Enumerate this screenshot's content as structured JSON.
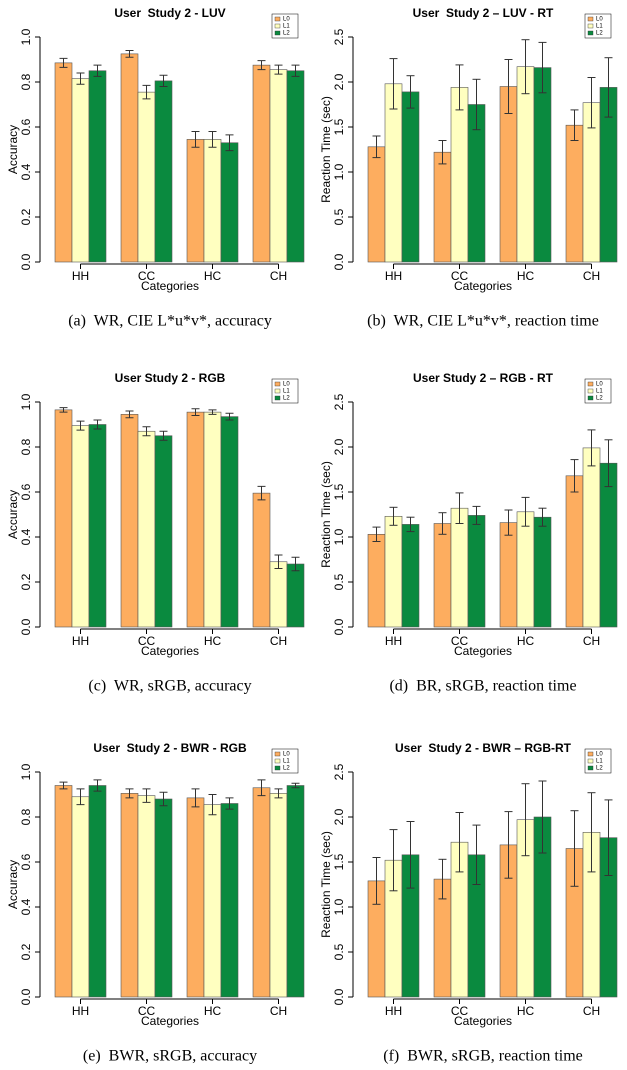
{
  "chart_data": [
    {
      "type": "bar",
      "title": "User  Study 2 - LUV",
      "xlabel": "Categories",
      "ylabel": "Accuracy",
      "caption": "(a)  WR, CIE L*u*v*, accuracy",
      "categories": [
        "HH",
        "CC",
        "HC",
        "CH"
      ],
      "legend": "top-right",
      "series": [
        {
          "name": "L0",
          "color": "#fdad5f",
          "values": [
            0.885,
            0.925,
            0.545,
            0.875
          ],
          "errors": [
            0.02,
            0.015,
            0.035,
            0.02
          ]
        },
        {
          "name": "L1",
          "color": "#ffffc0",
          "values": [
            0.815,
            0.755,
            0.545,
            0.855
          ],
          "errors": [
            0.025,
            0.03,
            0.035,
            0.02
          ]
        },
        {
          "name": "L2",
          "color": "#0a8a3f",
          "values": [
            0.85,
            0.805,
            0.53,
            0.85
          ],
          "errors": [
            0.025,
            0.025,
            0.035,
            0.025
          ]
        }
      ],
      "ylim": [
        0,
        1
      ],
      "yticks": [
        {
          "value": 0,
          "label": "0.0"
        },
        {
          "value": 0.2,
          "label": "0.2"
        },
        {
          "value": 0.4,
          "label": "0.4"
        },
        {
          "value": 0.6,
          "label": "0.6"
        },
        {
          "value": 0.8,
          "label": "0.8"
        },
        {
          "value": 1,
          "label": "1.0"
        }
      ]
    },
    {
      "type": "bar",
      "title": "User  Study 2 – LUV - RT",
      "xlabel": "Categories",
      "ylabel": "Reaction Time (sec)",
      "caption": "(b)  WR, CIE L*u*v*, reaction time",
      "categories": [
        "HH",
        "CC",
        "HC",
        "CH"
      ],
      "legend": "top-right",
      "series": [
        {
          "name": "L0",
          "color": "#fdad5f",
          "values": [
            1.28,
            1.22,
            1.95,
            1.52
          ],
          "errors": [
            0.12,
            0.13,
            0.3,
            0.17
          ]
        },
        {
          "name": "L1",
          "color": "#ffffc0",
          "values": [
            1.98,
            1.94,
            2.17,
            1.77
          ],
          "errors": [
            0.28,
            0.25,
            0.3,
            0.28
          ]
        },
        {
          "name": "L2",
          "color": "#0a8a3f",
          "values": [
            1.89,
            1.75,
            2.16,
            1.94
          ],
          "errors": [
            0.18,
            0.28,
            0.28,
            0.33
          ]
        }
      ],
      "ylim": [
        0,
        2.5
      ],
      "yticks": [
        {
          "value": 0,
          "label": "0.0"
        },
        {
          "value": 0.5,
          "label": "0.5"
        },
        {
          "value": 1,
          "label": "1.0"
        },
        {
          "value": 1.5,
          "label": "1.5"
        },
        {
          "value": 2,
          "label": "2.0"
        },
        2.5
      ]
    },
    {
      "type": "bar",
      "title": "User Study 2 - RGB",
      "xlabel": "Categories",
      "ylabel": "Accuracy",
      "caption": "(c)  WR, sRGB, accuracy",
      "categories": [
        "HH",
        "CC",
        "HC",
        "CH"
      ],
      "legend": "top-right",
      "series": [
        {
          "name": "L0",
          "color": "#fdad5f",
          "values": [
            0.965,
            0.945,
            0.955,
            0.595
          ],
          "errors": [
            0.01,
            0.015,
            0.015,
            0.03
          ]
        },
        {
          "name": "L1",
          "color": "#ffffc0",
          "values": [
            0.895,
            0.87,
            0.955,
            0.29
          ],
          "errors": [
            0.02,
            0.02,
            0.01,
            0.03
          ]
        },
        {
          "name": "L2",
          "color": "#0a8a3f",
          "values": [
            0.9,
            0.85,
            0.935,
            0.28
          ],
          "errors": [
            0.02,
            0.02,
            0.015,
            0.03
          ]
        }
      ],
      "ylim": [
        0,
        1
      ],
      "yticks": [
        {
          "value": 0,
          "label": "0.0"
        },
        {
          "value": 0.2,
          "label": "0.2"
        },
        {
          "value": 0.4,
          "label": "0.4"
        },
        {
          "value": 0.6,
          "label": "0.6"
        },
        {
          "value": 0.8,
          "label": "0.8"
        },
        {
          "value": 1,
          "label": "1.0"
        }
      ]
    },
    {
      "type": "bar",
      "title": "User Study 2 – RGB - RT",
      "xlabel": "Categories",
      "ylabel": "Reaction Time (sec)",
      "caption": "(d)  BR, sRGB, reaction time",
      "categories": [
        "HH",
        "CC",
        "HC",
        "CH"
      ],
      "legend": "top-right",
      "series": [
        {
          "name": "L0",
          "color": "#fdad5f",
          "values": [
            1.03,
            1.15,
            1.16,
            1.68
          ],
          "errors": [
            0.08,
            0.12,
            0.14,
            0.18
          ]
        },
        {
          "name": "L1",
          "color": "#ffffc0",
          "values": [
            1.23,
            1.32,
            1.28,
            1.99
          ],
          "errors": [
            0.1,
            0.17,
            0.16,
            0.2
          ]
        },
        {
          "name": "L2",
          "color": "#0a8a3f",
          "values": [
            1.14,
            1.24,
            1.22,
            1.82
          ],
          "errors": [
            0.08,
            0.1,
            0.1,
            0.26
          ]
        }
      ],
      "ylim": [
        0,
        2.5
      ],
      "yticks": [
        {
          "value": 0,
          "label": "0.0"
        },
        {
          "value": 0.5,
          "label": "0.5"
        },
        {
          "value": 1,
          "label": "1.0"
        },
        {
          "value": 1.5,
          "label": "1.5"
        },
        {
          "value": 2,
          "label": "2.0"
        },
        2.5
      ]
    },
    {
      "type": "bar",
      "title": "User  Study 2 - BWR - RGB",
      "xlabel": "Categories",
      "ylabel": "Accuracy",
      "caption": "(e)  BWR, sRGB, accuracy",
      "categories": [
        "HH",
        "CC",
        "HC",
        "CH"
      ],
      "legend": "top-right",
      "series": [
        {
          "name": "L0",
          "color": "#fdad5f",
          "values": [
            0.94,
            0.905,
            0.885,
            0.93
          ],
          "errors": [
            0.015,
            0.02,
            0.04,
            0.035
          ]
        },
        {
          "name": "L1",
          "color": "#ffffc0",
          "values": [
            0.89,
            0.895,
            0.855,
            0.905
          ],
          "errors": [
            0.035,
            0.03,
            0.045,
            0.02
          ]
        },
        {
          "name": "L2",
          "color": "#0a8a3f",
          "values": [
            0.94,
            0.88,
            0.86,
            0.94
          ],
          "errors": [
            0.025,
            0.03,
            0.025,
            0.01
          ]
        }
      ],
      "ylim": [
        0,
        1
      ],
      "yticks": [
        {
          "value": 0,
          "label": "0.0"
        },
        {
          "value": 0.2,
          "label": "0.2"
        },
        {
          "value": 0.4,
          "label": "0.4"
        },
        {
          "value": 0.6,
          "label": "0.6"
        },
        {
          "value": 0.8,
          "label": "0.8"
        },
        {
          "value": 1,
          "label": "1.0"
        }
      ]
    },
    {
      "type": "bar",
      "title": "User  Study 2 - BWR – RGB-RT",
      "xlabel": "Categories",
      "ylabel": "Reaction Time (sec)",
      "caption": "(f)  BWR, sRGB, reaction time",
      "categories": [
        "HH",
        "CC",
        "HC",
        "CH"
      ],
      "legend": "top-right",
      "series": [
        {
          "name": "L0",
          "color": "#fdad5f",
          "values": [
            1.29,
            1.31,
            1.69,
            1.65
          ],
          "errors": [
            0.26,
            0.22,
            0.37,
            0.42
          ]
        },
        {
          "name": "L1",
          "color": "#ffffc0",
          "values": [
            1.52,
            1.72,
            1.97,
            1.83
          ],
          "errors": [
            0.34,
            0.33,
            0.4,
            0.44
          ]
        },
        {
          "name": "L2",
          "color": "#0a8a3f",
          "values": [
            1.58,
            1.58,
            2.0,
            1.77
          ],
          "errors": [
            0.37,
            0.33,
            0.4,
            0.42
          ]
        }
      ],
      "ylim": [
        0,
        2.5
      ],
      "yticks": [
        {
          "value": 0,
          "label": "0.0"
        },
        {
          "value": 0.5,
          "label": "0.5"
        },
        {
          "value": 1,
          "label": "1.0"
        },
        {
          "value": 1.5,
          "label": "1.5"
        },
        {
          "value": 2,
          "label": "2.0"
        },
        2.5
      ]
    }
  ]
}
